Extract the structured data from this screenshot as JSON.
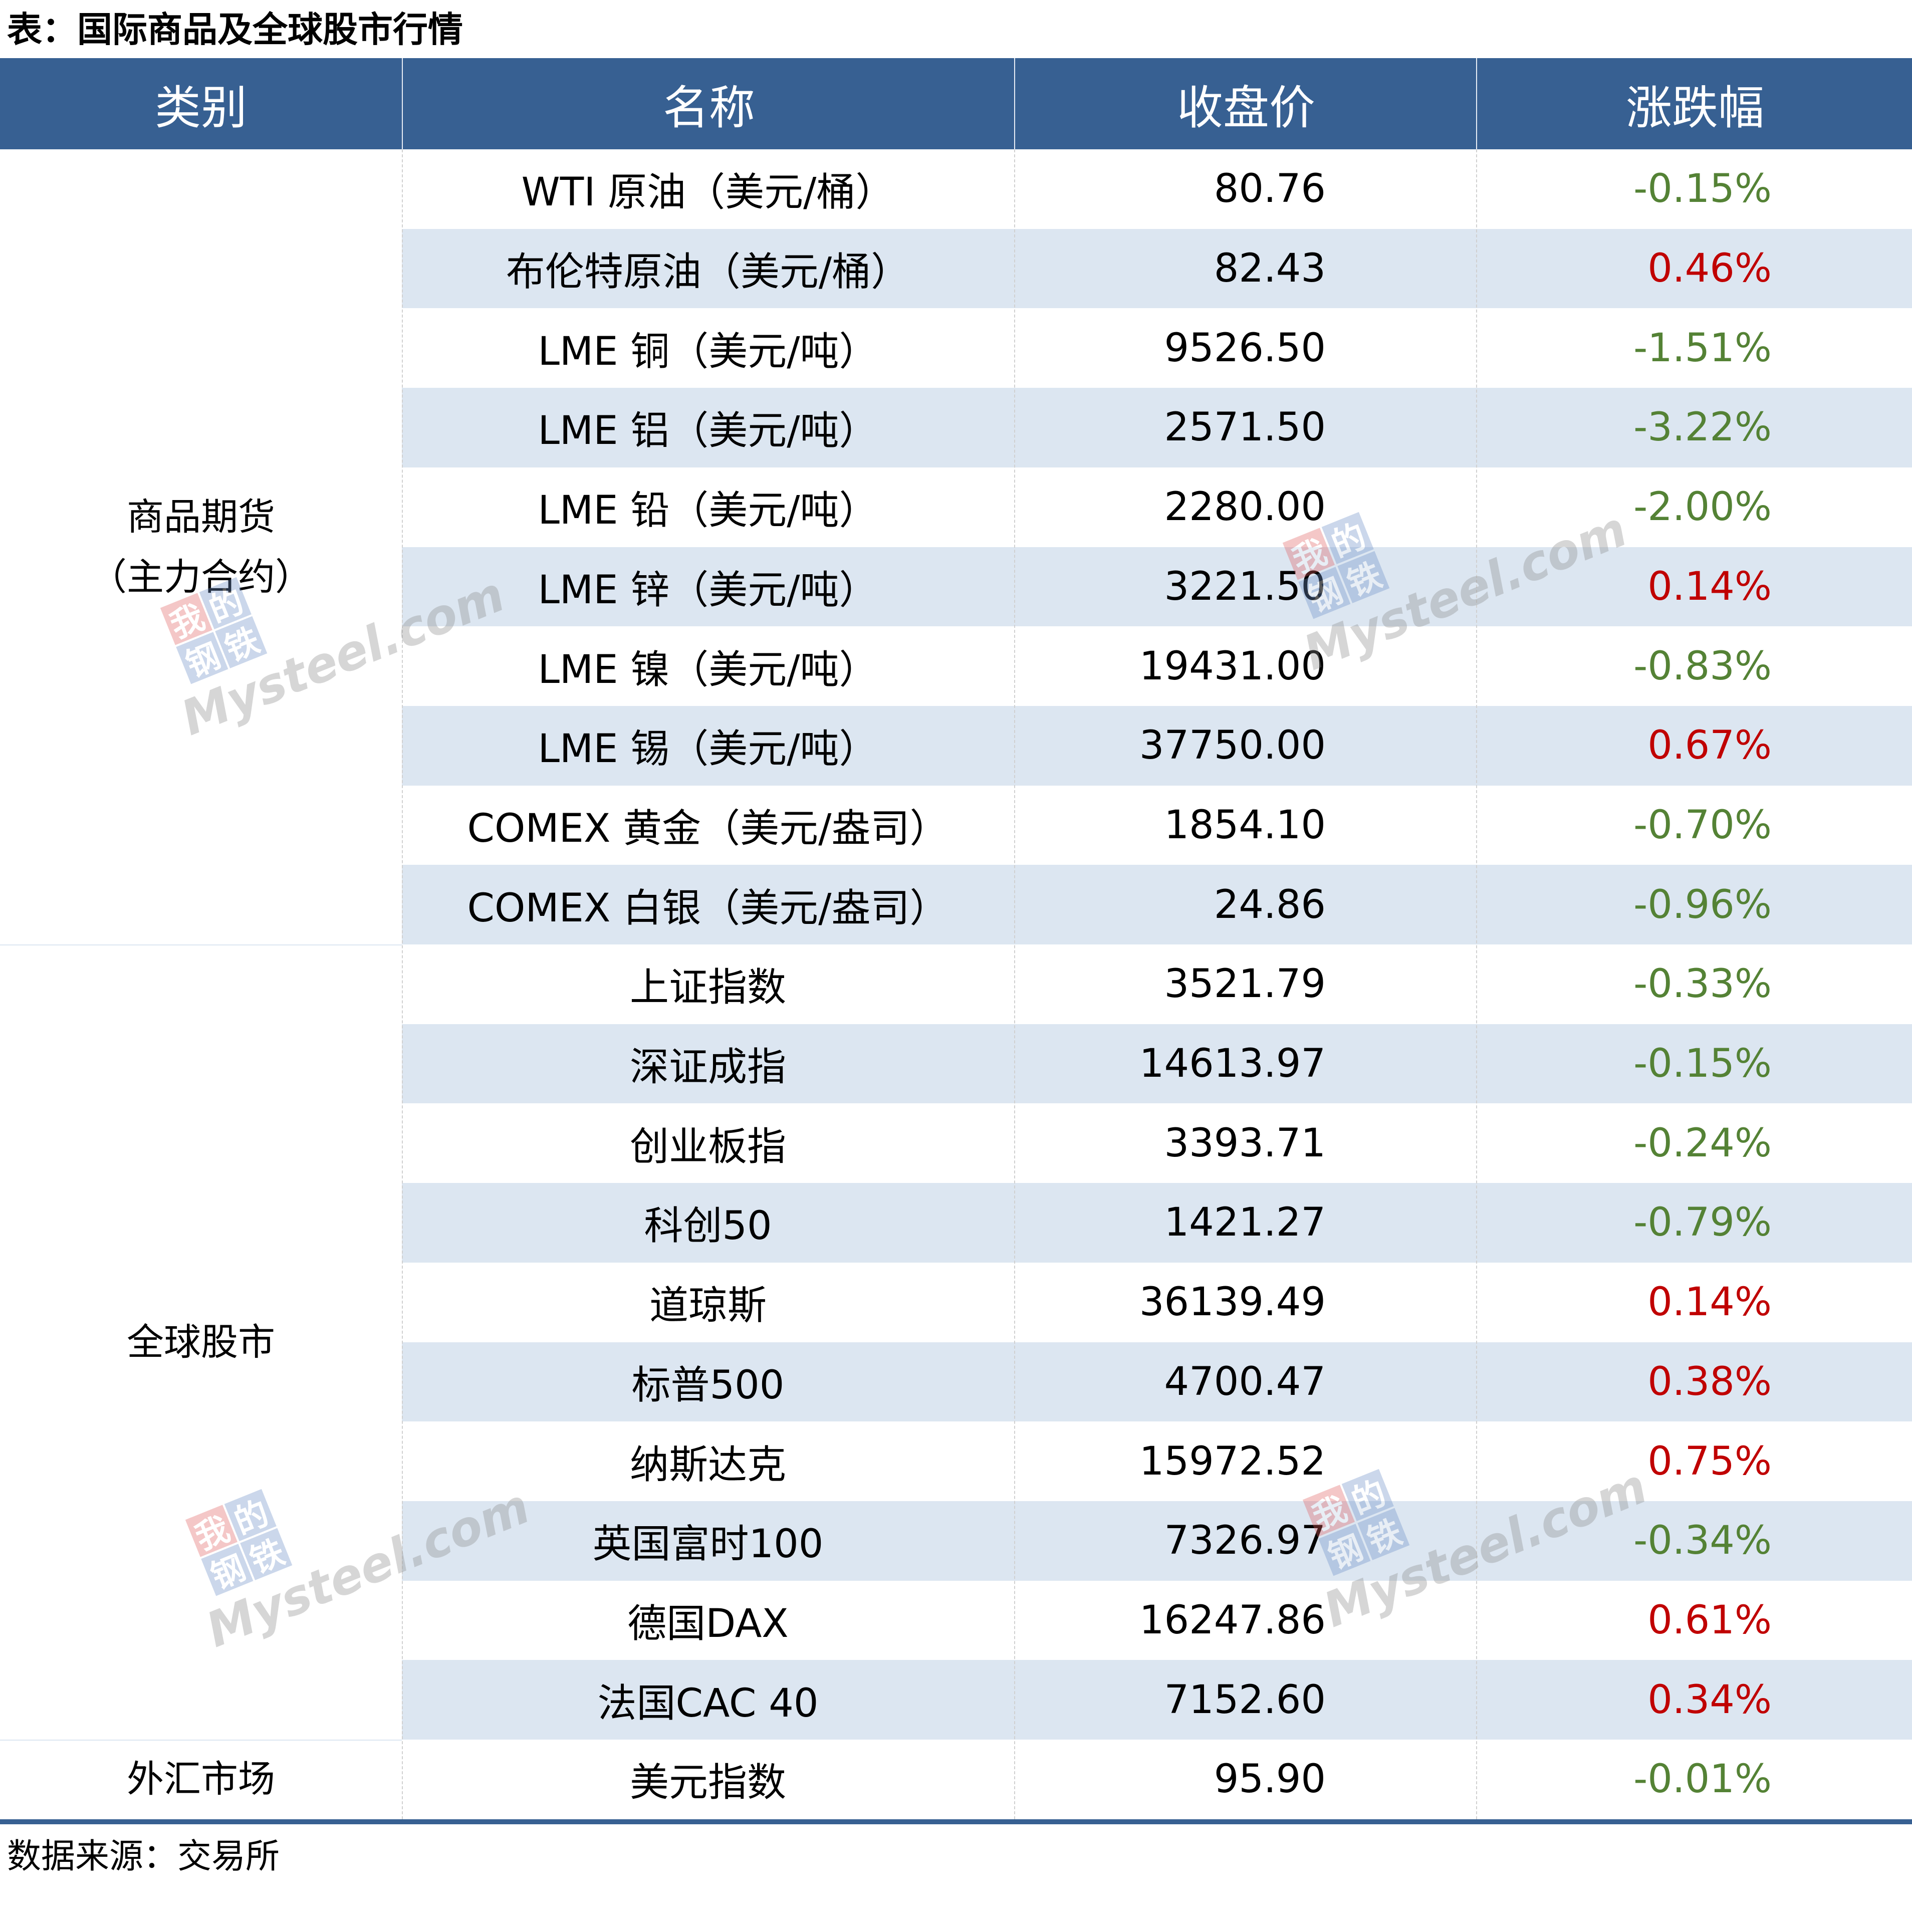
{
  "title": "表：国际商品及全球股市行情",
  "headers": [
    "类别",
    "名称",
    "收盘价",
    "涨跌幅"
  ],
  "colors": {
    "header_bg": "#376092",
    "stripe_bg": "#dce6f1",
    "up": "#c00000",
    "down": "#548235"
  },
  "categories": [
    {
      "label_line1": "商品期货",
      "label_line2": "（主力合约）",
      "row_start": 0,
      "row_count": 10
    },
    {
      "label_line1": "全球股市",
      "label_line2": "",
      "row_start": 10,
      "row_count": 10
    },
    {
      "label_line1": "外汇市场",
      "label_line2": "",
      "row_start": 20,
      "row_count": 1
    }
  ],
  "rows": [
    {
      "name": "WTI 原油（美元/桶）",
      "price": "80.76",
      "change": "-0.15%",
      "dir": "down"
    },
    {
      "name": "布伦特原油（美元/桶）",
      "price": "82.43",
      "change": "0.46%",
      "dir": "up"
    },
    {
      "name": "LME 铜（美元/吨）",
      "price": "9526.50",
      "change": "-1.51%",
      "dir": "down"
    },
    {
      "name": "LME 铝（美元/吨）",
      "price": "2571.50",
      "change": "-3.22%",
      "dir": "down"
    },
    {
      "name": "LME 铅（美元/吨）",
      "price": "2280.00",
      "change": "-2.00%",
      "dir": "down"
    },
    {
      "name": "LME 锌（美元/吨）",
      "price": "3221.50",
      "change": "0.14%",
      "dir": "up"
    },
    {
      "name": "LME 镍（美元/吨）",
      "price": "19431.00",
      "change": "-0.83%",
      "dir": "down"
    },
    {
      "name": "LME 锡（美元/吨）",
      "price": "37750.00",
      "change": "0.67%",
      "dir": "up"
    },
    {
      "name": "COMEX 黄金（美元/盎司）",
      "price": "1854.10",
      "change": "-0.70%",
      "dir": "down"
    },
    {
      "name": "COMEX 白银（美元/盎司）",
      "price": "24.86",
      "change": "-0.96%",
      "dir": "down"
    },
    {
      "name": "上证指数",
      "price": "3521.79",
      "change": "-0.33%",
      "dir": "down"
    },
    {
      "name": "深证成指",
      "price": "14613.97",
      "change": "-0.15%",
      "dir": "down"
    },
    {
      "name": "创业板指",
      "price": "3393.71",
      "change": "-0.24%",
      "dir": "down"
    },
    {
      "name": "科创50",
      "price": "1421.27",
      "change": "-0.79%",
      "dir": "down"
    },
    {
      "name": "道琼斯",
      "price": "36139.49",
      "change": "0.14%",
      "dir": "up"
    },
    {
      "name": "标普500",
      "price": "4700.47",
      "change": "0.38%",
      "dir": "up"
    },
    {
      "name": "纳斯达克",
      "price": "15972.52",
      "change": "0.75%",
      "dir": "up"
    },
    {
      "name": "英国富时100",
      "price": "7326.97",
      "change": "-0.34%",
      "dir": "down"
    },
    {
      "name": "德国DAX",
      "price": "16247.86",
      "change": "0.61%",
      "dir": "up"
    },
    {
      "name": "法国CAC 40",
      "price": "7152.60",
      "change": "0.34%",
      "dir": "up"
    },
    {
      "name": "美元指数",
      "price": "95.90",
      "change": "-0.01%",
      "dir": "down"
    }
  ],
  "footer": "数据来源：交易所",
  "watermark": {
    "chars": [
      "我",
      "的",
      "钢",
      "铁"
    ],
    "text": "Mysteel.com"
  }
}
